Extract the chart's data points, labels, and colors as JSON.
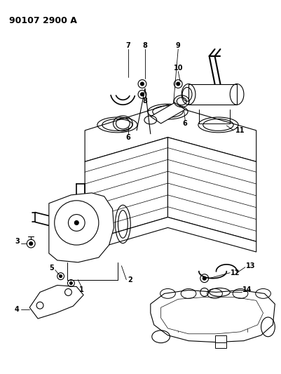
{
  "title": "90107 2900 A",
  "background_color": "#ffffff",
  "line_color": "#000000",
  "fig_width": 4.02,
  "fig_height": 5.33,
  "dpi": 100
}
